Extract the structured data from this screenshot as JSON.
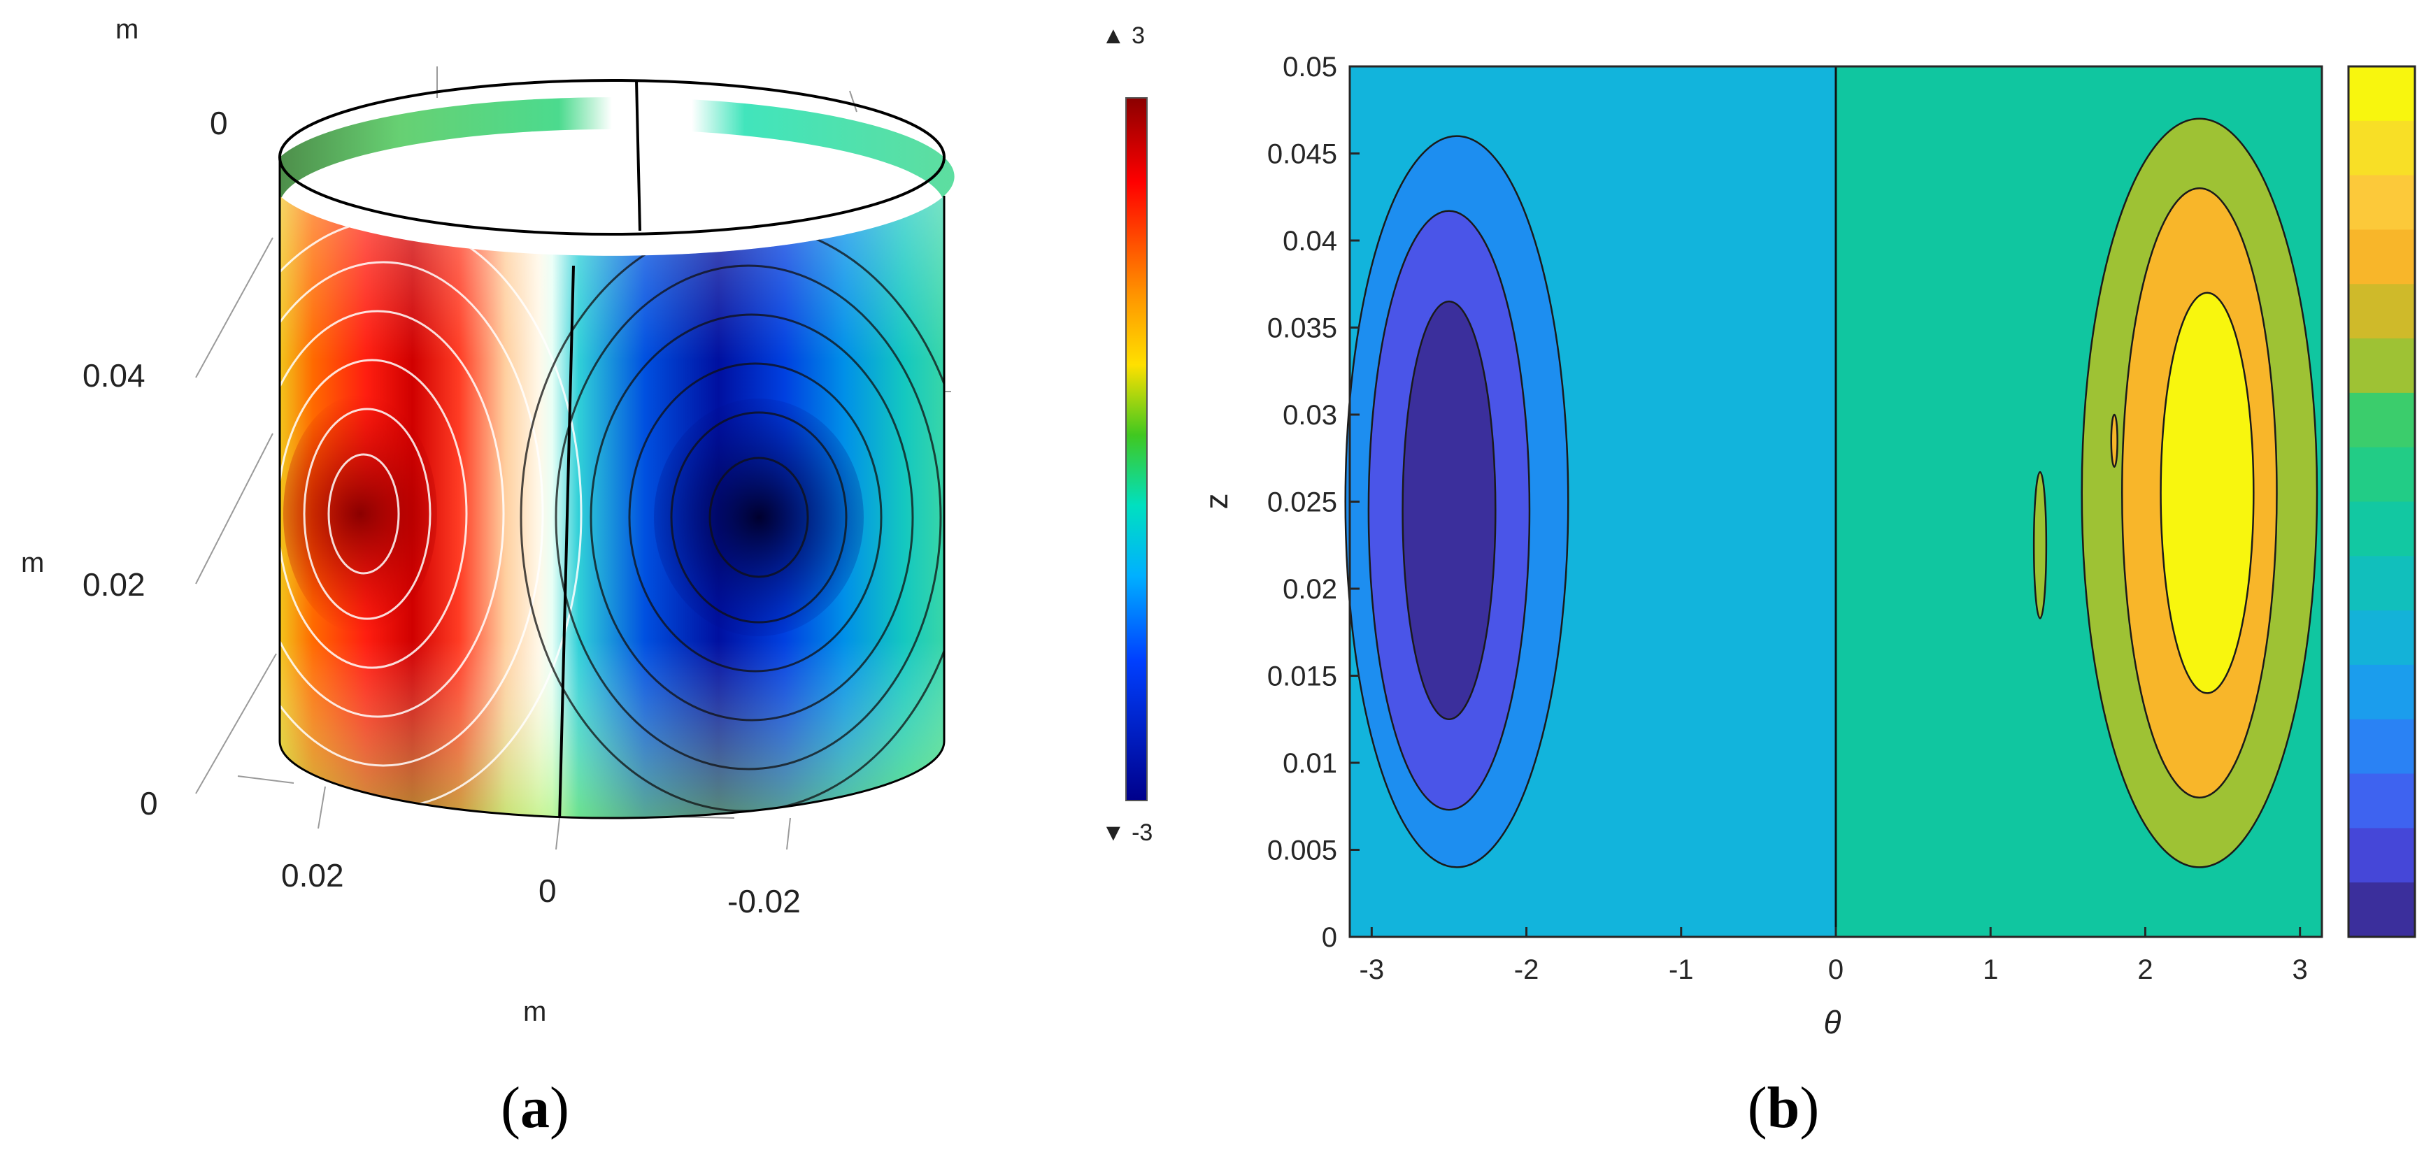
{
  "panels": {
    "a": {
      "caption_open": "(",
      "caption_letter": "a",
      "caption_close": ")"
    },
    "b": {
      "caption_open": "(",
      "caption_letter": "b",
      "caption_close": ")"
    }
  },
  "chart_data": [
    {
      "panel": "a",
      "type": "heatmap",
      "projection": "3d-cylinder-surface",
      "axis_unit_labels": [
        "m",
        "m",
        "m"
      ],
      "z_ticks": [
        "0",
        "0.02",
        "0.04"
      ],
      "top_tick": "0",
      "horizontal_ticks": [
        "0.02",
        "0",
        "-0.02"
      ],
      "colorbar": {
        "max_label": "▲ 3",
        "min_label": "▼ -3",
        "range": [
          -3,
          3
        ],
        "colormap": "rainbow"
      },
      "contour_lines": true,
      "extrema": [
        {
          "kind": "max",
          "color": "#8b0000"
        },
        {
          "kind": "min",
          "color": "#000050"
        }
      ]
    },
    {
      "panel": "b",
      "type": "heatmap",
      "style": "filled-contour",
      "xlabel": "θ",
      "ylabel": "z",
      "xlim": [
        -3.14159,
        3.14159
      ],
      "ylim": [
        0,
        0.05
      ],
      "xticks": [
        -3,
        -2,
        -1,
        0,
        1,
        2,
        3
      ],
      "yticks": [
        0,
        0.005,
        0.01,
        0.015,
        0.02,
        0.025,
        0.03,
        0.035,
        0.04,
        0.045,
        0.05
      ],
      "grid": false,
      "colorbar": {
        "position": "right",
        "colormap": "parula",
        "tick_labels": false
      },
      "levels": [
        {
          "name": "level-min",
          "color": "#3b2f9c"
        },
        {
          "name": "level-2",
          "color": "#4a55e8"
        },
        {
          "name": "level-3",
          "color": "#1d8ef0"
        },
        {
          "name": "background-negative",
          "color": "#12b4dc"
        },
        {
          "name": "background-positive",
          "color": "#10c6a0"
        },
        {
          "name": "level-6",
          "color": "#9ec234"
        },
        {
          "name": "level-7",
          "color": "#f8b62a"
        },
        {
          "name": "level-max",
          "color": "#f8f60e"
        }
      ],
      "regions": [
        {
          "level": "background-negative",
          "theta": [
            -3.1416,
            0
          ],
          "z": [
            0,
            0.05
          ]
        },
        {
          "level": "background-positive",
          "theta": [
            0,
            3.1416
          ],
          "z": [
            0,
            0.05
          ]
        },
        {
          "level": "level-3",
          "theta_center": -2.45,
          "z_center": 0.025,
          "theta_halfwidth": 0.72,
          "z_halfheight": 0.021
        },
        {
          "level": "level-2",
          "theta_center": -2.5,
          "z_center": 0.0245,
          "theta_halfwidth": 0.52,
          "z_halfheight": 0.0172
        },
        {
          "level": "level-min",
          "theta_center": -2.5,
          "z_center": 0.0245,
          "theta_halfwidth": 0.3,
          "z_halfheight": 0.012
        },
        {
          "level": "level-6",
          "theta_center": 2.35,
          "z_center": 0.0255,
          "theta_halfwidth": 0.76,
          "z_halfheight": 0.0215
        },
        {
          "level": "level-7",
          "theta_center": 2.35,
          "z_center": 0.0255,
          "theta_halfwidth": 0.5,
          "z_halfheight": 0.0175
        },
        {
          "level": "level-max",
          "theta_center": 2.4,
          "z_center": 0.0255,
          "theta_halfwidth": 0.3,
          "z_halfheight": 0.0115
        },
        {
          "level": "level-6",
          "theta_center": 1.32,
          "z_center": 0.0225,
          "theta_halfwidth": 0.04,
          "z_halfheight": 0.0042
        },
        {
          "level": "level-7",
          "theta_center": 1.8,
          "z_center": 0.0285,
          "theta_halfwidth": 0.02,
          "z_halfheight": 0.0015
        }
      ]
    }
  ]
}
